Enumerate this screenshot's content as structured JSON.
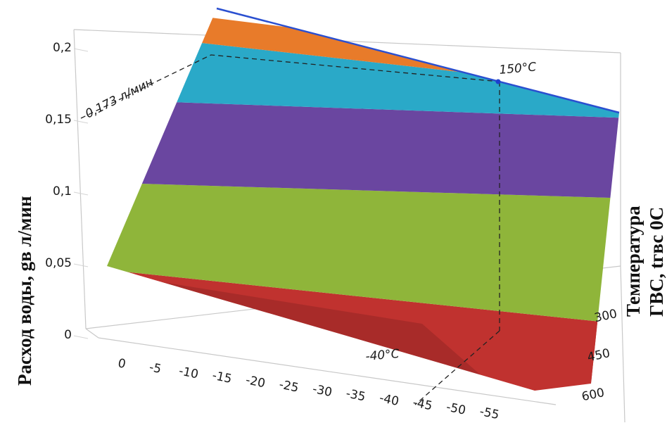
{
  "chart_data": {
    "type": "surface",
    "title": "",
    "ylabel": "Расход воды, gв л/мин",
    "zlabel_line1": "Температура",
    "zlabel_line2": "ГВС, tгвс 0С",
    "y_ticks": [
      "0",
      "0,05",
      "0,1",
      "0,15",
      "0,2"
    ],
    "x_ticks": [
      "0",
      "-5",
      "-10",
      "-15",
      "-20",
      "-25",
      "-30",
      "-35",
      "-40",
      "-45",
      "-50",
      "-55"
    ],
    "z_ticks": [
      "300",
      "450",
      "600"
    ],
    "ylim": [
      0,
      0.22
    ],
    "bands": [
      {
        "from": 0.0,
        "to": 0.05,
        "color": "#c0322f"
      },
      {
        "from": 0.05,
        "to": 0.1,
        "color": "#8fb53a"
      },
      {
        "from": 0.1,
        "to": 0.15,
        "color": "#6a46a0"
      },
      {
        "from": 0.15,
        "to": 0.2,
        "color": "#2aa9c8"
      },
      {
        "from": 0.2,
        "to": 0.22,
        "color": "#e87b2a"
      }
    ],
    "annotations": {
      "flow": "0,173 л/мин",
      "temperature": "150°C",
      "outdoor": "-40°C"
    },
    "grid": true
  }
}
